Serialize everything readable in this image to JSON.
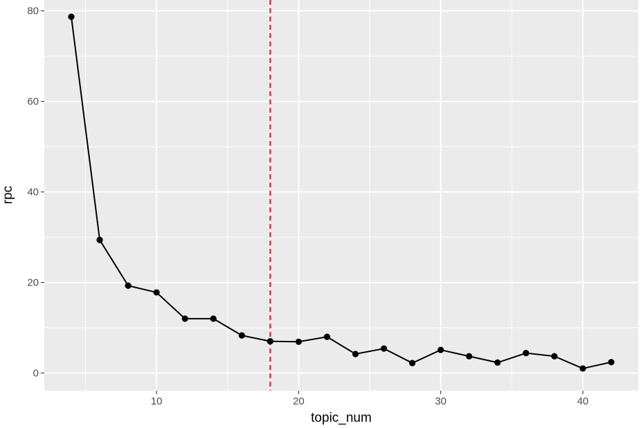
{
  "chart_data": {
    "type": "line",
    "xlabel": "topic_num",
    "ylabel": "rpc",
    "xlim": [
      2.1,
      43.9
    ],
    "ylim": [
      -3.9,
      82.4
    ],
    "x_ticks": [
      10,
      20,
      30,
      40
    ],
    "y_ticks": [
      0,
      20,
      40,
      60,
      80
    ],
    "x_minor_ticks": [
      5,
      15,
      25,
      35
    ],
    "y_minor_ticks": [
      10,
      30,
      50,
      70
    ],
    "grid": true,
    "legend": "none",
    "panel_color": "#ebebeb",
    "grid_color": "#ffffff",
    "line_color": "#000000",
    "series": [
      {
        "x": [
          4,
          6,
          8,
          10,
          12,
          14,
          16,
          18,
          20,
          22,
          24,
          26,
          28,
          30,
          32,
          34,
          36,
          38,
          40,
          42
        ],
        "values": [
          78.7,
          29.4,
          19.3,
          17.8,
          12.0,
          12.0,
          8.3,
          7.0,
          6.9,
          8.0,
          4.2,
          5.4,
          2.2,
          5.1,
          3.7,
          2.3,
          4.4,
          3.7,
          1.0,
          2.4
        ]
      }
    ],
    "reference_line": {
      "orientation": "vertical",
      "x": 18,
      "style": "dashed",
      "color": "#d7191c"
    }
  }
}
